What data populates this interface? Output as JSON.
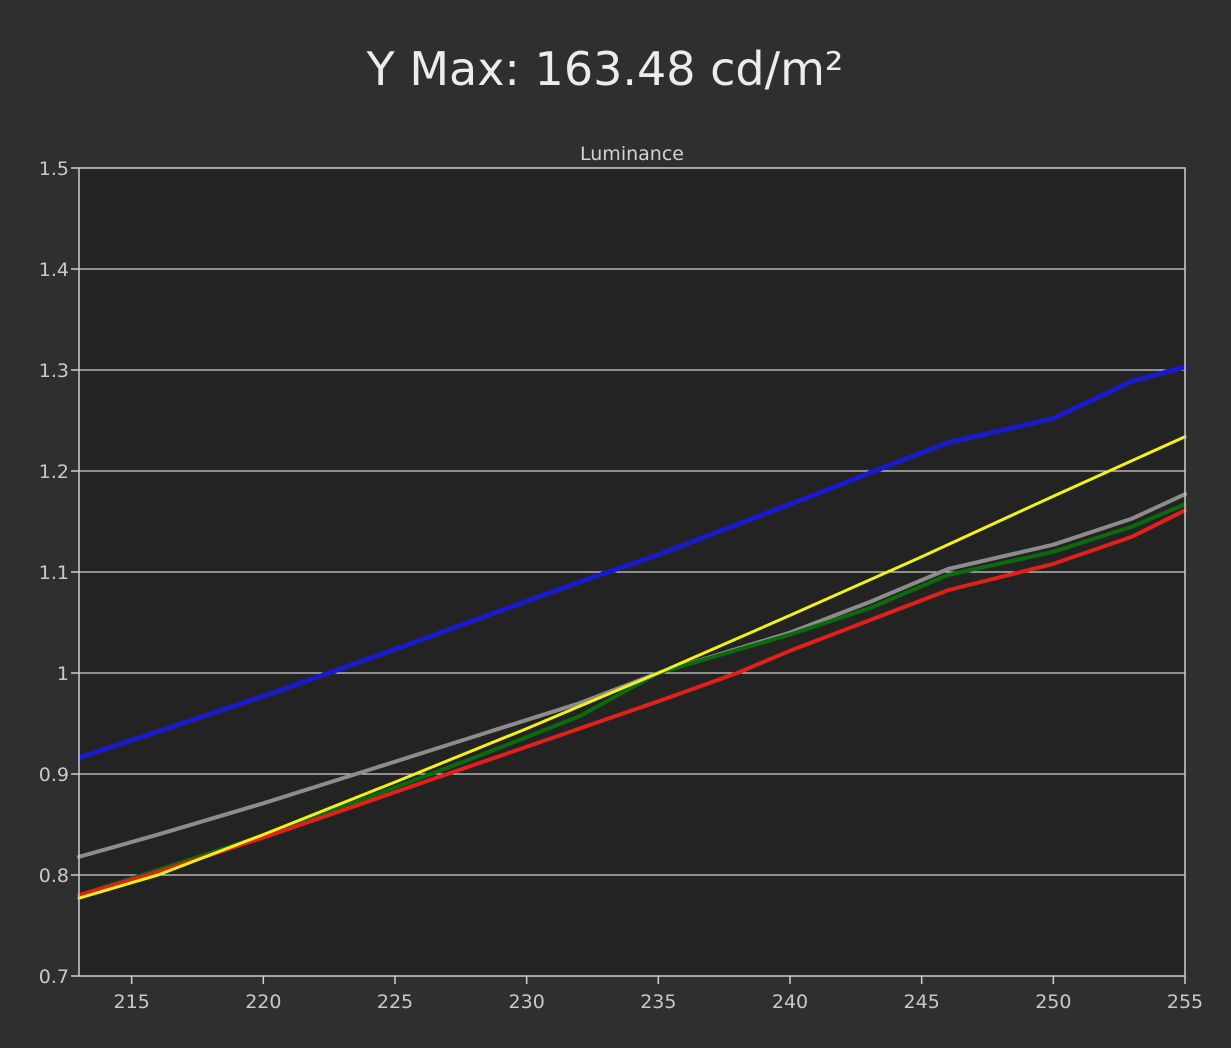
{
  "page": {
    "title": "Y Max: 163.48  cd/m²"
  },
  "chart_data": {
    "type": "line",
    "title": "Luminance",
    "xlabel": "",
    "ylabel": "",
    "xlim": [
      213,
      255
    ],
    "ylim": [
      0.7,
      1.5
    ],
    "x_ticks": [
      215,
      220,
      225,
      230,
      235,
      240,
      245,
      250,
      255
    ],
    "y_ticks": [
      {
        "v": 0.7,
        "label": "0.7"
      },
      {
        "v": 0.8,
        "label": "0.8"
      },
      {
        "v": 0.9,
        "label": "0.9"
      },
      {
        "v": 1.0,
        "label": "1"
      },
      {
        "v": 1.1,
        "label": "1.1"
      },
      {
        "v": 1.2,
        "label": "1.2"
      },
      {
        "v": 1.3,
        "label": "1.3"
      },
      {
        "v": 1.4,
        "label": "1.4"
      },
      {
        "v": 1.5,
        "label": "1.5"
      }
    ],
    "grid": true,
    "colors": {
      "plot_background": "#232323",
      "grid": "#d0d0d0",
      "white": "#8c8c8c",
      "green": "#0b6a0b",
      "red": "#e0201a",
      "yellow": "#f2f020",
      "blue": "#1a1ac8"
    },
    "series": [
      {
        "color_key": "white",
        "width": 4,
        "x": [
          213,
          216,
          220,
          224,
          228,
          232,
          235,
          240,
          243,
          246,
          250,
          253,
          255
        ],
        "y": [
          0.818,
          0.84,
          0.871,
          0.904,
          0.937,
          0.97,
          1.0,
          1.04,
          1.07,
          1.103,
          1.127,
          1.153,
          1.177
        ]
      },
      {
        "color_key": "green",
        "width": 4,
        "x": [
          213,
          216,
          220,
          224,
          228,
          232,
          235,
          240,
          243,
          246,
          250,
          253,
          255
        ],
        "y": [
          0.78,
          0.805,
          0.839,
          0.877,
          0.916,
          0.957,
          1.0,
          1.038,
          1.064,
          1.097,
          1.12,
          1.145,
          1.167
        ]
      },
      {
        "color_key": "red",
        "width": 4,
        "x": [
          213,
          216,
          220,
          224,
          228,
          232,
          235,
          238,
          240,
          243,
          246,
          250,
          253,
          255
        ],
        "y": [
          0.78,
          0.803,
          0.837,
          0.873,
          0.909,
          0.945,
          0.972,
          1.0,
          1.022,
          1.052,
          1.082,
          1.108,
          1.135,
          1.161
        ]
      },
      {
        "color_key": "yellow",
        "width": 3,
        "x": [
          213,
          216,
          220,
          225,
          230,
          235,
          240,
          245,
          250,
          255
        ],
        "y": [
          0.777,
          0.8,
          0.84,
          0.892,
          0.945,
          1.0,
          1.057,
          1.115,
          1.175,
          1.234
        ]
      },
      {
        "color_key": "blue",
        "width": 5,
        "x": [
          213,
          216,
          220,
          224,
          228,
          232,
          235,
          238,
          241,
          244,
          246,
          248,
          250,
          253,
          255
        ],
        "y": [
          0.916,
          0.942,
          0.977,
          1.014,
          1.052,
          1.09,
          1.117,
          1.147,
          1.177,
          1.208,
          1.228,
          1.24,
          1.252,
          1.289,
          1.303
        ]
      }
    ]
  }
}
